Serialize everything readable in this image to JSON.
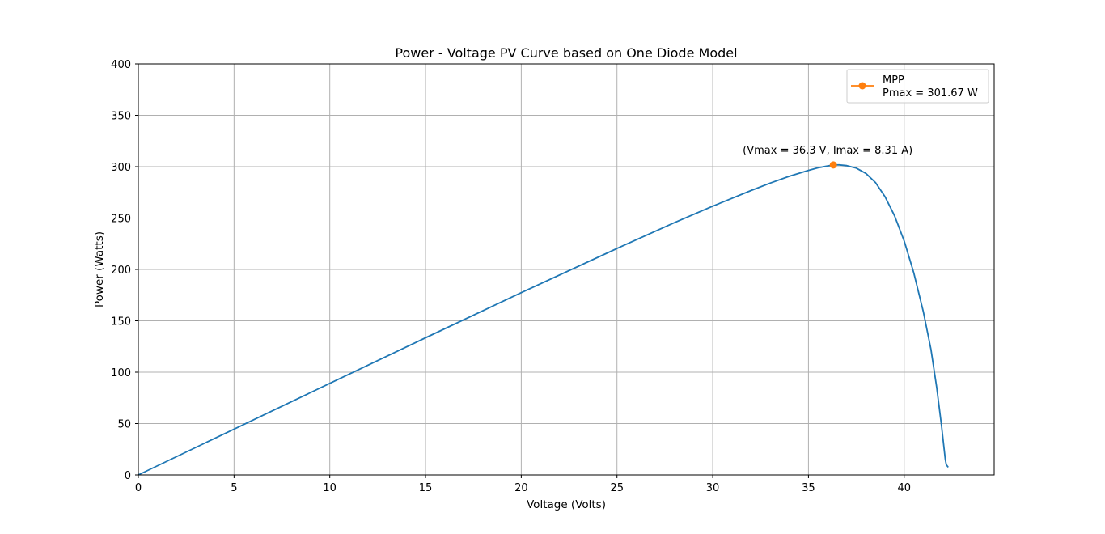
{
  "chart_data": {
    "type": "line",
    "title": "Power - Voltage PV Curve based on One Diode Model",
    "xlabel": "Voltage (Volts)",
    "ylabel": "Power (Watts)",
    "xlim": [
      0,
      44.7
    ],
    "ylim": [
      0,
      400
    ],
    "x_ticks": [
      0,
      5,
      10,
      15,
      20,
      25,
      30,
      35,
      40
    ],
    "y_ticks": [
      0,
      50,
      100,
      150,
      200,
      250,
      300,
      350,
      400
    ],
    "grid": true,
    "legend_position": "upper right",
    "series": [
      {
        "color": "#1f77b4",
        "points": [
          [
            0,
            0
          ],
          [
            5,
            44.6
          ],
          [
            10,
            89.1
          ],
          [
            15,
            133.5
          ],
          [
            20,
            177.4
          ],
          [
            25,
            220.4
          ],
          [
            28,
            245.5
          ],
          [
            30,
            261.6
          ],
          [
            32,
            276.8
          ],
          [
            33,
            284.0
          ],
          [
            34,
            290.6
          ],
          [
            35,
            296.4
          ],
          [
            35.5,
            298.9
          ],
          [
            36,
            300.7
          ],
          [
            36.3,
            301.67
          ],
          [
            36.6,
            301.7
          ],
          [
            37,
            301.0
          ],
          [
            37.5,
            298.6
          ],
          [
            38,
            293.5
          ],
          [
            38.5,
            284.6
          ],
          [
            39,
            270.8
          ],
          [
            39.5,
            252.1
          ],
          [
            40,
            227.6
          ],
          [
            40.5,
            196.8
          ],
          [
            41,
            159.0
          ],
          [
            41.4,
            122.0
          ],
          [
            41.7,
            85.0
          ],
          [
            41.95,
            48.0
          ],
          [
            42.15,
            15.0
          ],
          [
            42.2,
            10.0
          ],
          [
            42.3,
            7.5
          ]
        ]
      },
      {
        "name": "MPP\nPmax = 301.67 W",
        "color": "#ff7f0e",
        "marker": "circle",
        "points": [
          [
            36.3,
            301.67
          ]
        ]
      }
    ],
    "annotations": [
      {
        "text": "(Vmax = 36.3 V, Imax = 8.31 A)",
        "x": 36.3,
        "y": 301.67
      }
    ]
  }
}
